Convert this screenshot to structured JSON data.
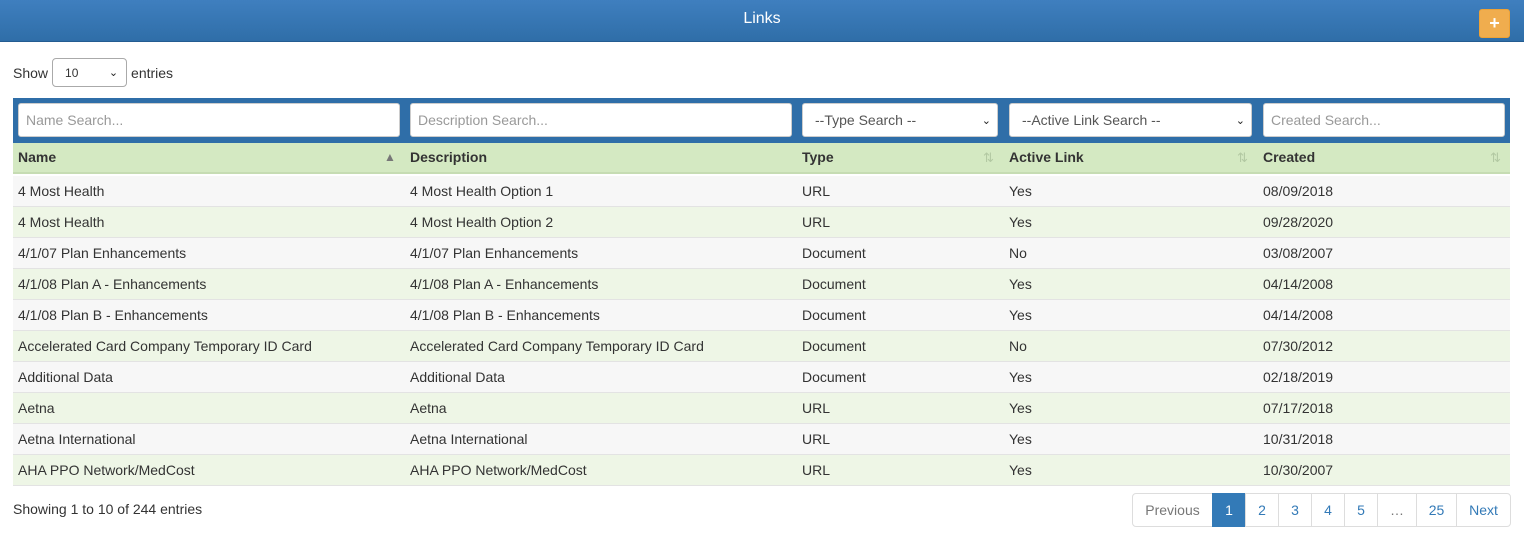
{
  "header": {
    "title": "Links",
    "add_label": "+"
  },
  "length": {
    "show": "Show",
    "value": "10",
    "entries": "entries"
  },
  "filters": {
    "name_placeholder": "Name Search...",
    "description_placeholder": "Description Search...",
    "type_value": "--Type Search --",
    "active_value": "--Active Link Search --",
    "created_placeholder": "Created Search..."
  },
  "columns": [
    "Name",
    "Description",
    "Type",
    "Active Link",
    "Created"
  ],
  "rows": [
    [
      "4 Most Health",
      "4 Most Health Option 1",
      "URL",
      "Yes",
      "08/09/2018"
    ],
    [
      "4 Most Health",
      "4 Most Health Option 2",
      "URL",
      "Yes",
      "09/28/2020"
    ],
    [
      "4/1/07 Plan Enhancements",
      "4/1/07 Plan Enhancements",
      "Document",
      "No",
      "03/08/2007"
    ],
    [
      "4/1/08 Plan A - Enhancements",
      "4/1/08 Plan A - Enhancements",
      "Document",
      "Yes",
      "04/14/2008"
    ],
    [
      "4/1/08 Plan B - Enhancements",
      "4/1/08 Plan B - Enhancements",
      "Document",
      "Yes",
      "04/14/2008"
    ],
    [
      "Accelerated Card Company Temporary ID Card",
      "Accelerated Card Company Temporary ID Card",
      "Document",
      "No",
      "07/30/2012"
    ],
    [
      "Additional Data",
      "Additional Data",
      "Document",
      "Yes",
      "02/18/2019"
    ],
    [
      "Aetna",
      "Aetna",
      "URL",
      "Yes",
      "07/17/2018"
    ],
    [
      "Aetna International",
      "Aetna International",
      "URL",
      "Yes",
      "10/31/2018"
    ],
    [
      "AHA PPO Network/MedCost",
      "AHA PPO Network/MedCost",
      "URL",
      "Yes",
      "10/30/2007"
    ]
  ],
  "info": "Showing 1 to 10 of 244 entries",
  "pagination": {
    "previous": "Previous",
    "pages": [
      "1",
      "2",
      "3",
      "4",
      "5",
      "…",
      "25"
    ],
    "next": "Next",
    "active": "1"
  }
}
